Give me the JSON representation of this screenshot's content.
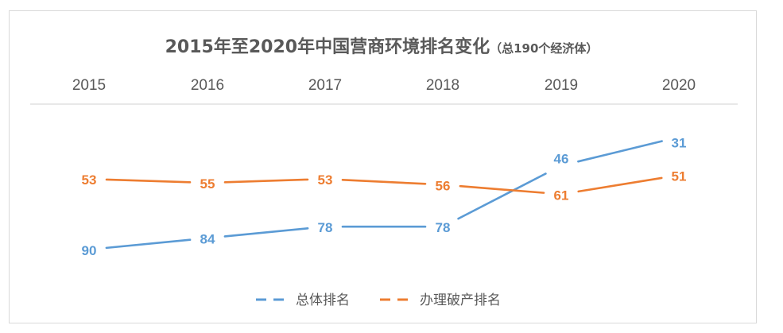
{
  "chart_data": {
    "type": "line",
    "title": "2015年至2020年中国营商环境排名变化",
    "subtitle": "（总190个经济体）",
    "categories": [
      "2015",
      "2016",
      "2017",
      "2018",
      "2019",
      "2020"
    ],
    "series": [
      {
        "name": "总体排名",
        "values": [
          90,
          84,
          78,
          78,
          46,
          31
        ],
        "color": "#5b9bd5"
      },
      {
        "name": "办理破产排名",
        "values": [
          53,
          55,
          53,
          56,
          61,
          51
        ],
        "color": "#ed7d31"
      }
    ],
    "x_axis_position": "top",
    "y_reversed": true,
    "grid": false,
    "legend_position": "bottom",
    "data_labels": true
  }
}
